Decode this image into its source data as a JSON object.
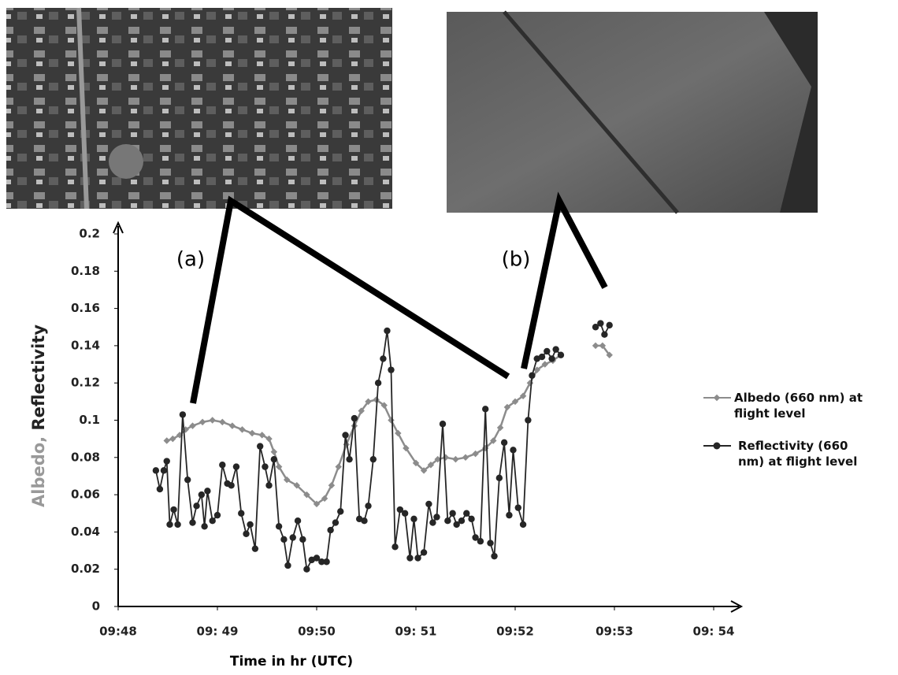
{
  "chart_data": {
    "type": "line",
    "ylabel": [
      "Albedo,",
      "Reflectivity"
    ],
    "xlabel": "Time in hr (UTC)",
    "annotations": [
      "(a)",
      "(b)"
    ],
    "xlim": [
      0,
      6.2
    ],
    "xticks": [
      {
        "value": 0,
        "label": "09:48"
      },
      {
        "value": 1,
        "label": "09: 49"
      },
      {
        "value": 2,
        "label": "09:50"
      },
      {
        "value": 3,
        "label": "09: 51"
      },
      {
        "value": 4,
        "label": "09:52"
      },
      {
        "value": 5,
        "label": "09:53"
      },
      {
        "value": 6,
        "label": "09: 54"
      }
    ],
    "ylim": [
      0,
      0.2
    ],
    "yticks": [
      0,
      0.02,
      0.04,
      0.06,
      0.08,
      0.1,
      0.12,
      0.14,
      0.16,
      0.18,
      0.2
    ],
    "series": [
      {
        "name": "Albedo (660 nm) at flight level",
        "color": "#8c8c8c",
        "x": [
          0.49,
          0.55,
          0.62,
          0.68,
          0.75,
          0.85,
          0.95,
          1.05,
          1.15,
          1.25,
          1.35,
          1.45,
          1.52,
          1.57,
          1.62,
          1.7,
          1.8,
          1.9,
          2.0,
          2.08,
          2.15,
          2.22,
          2.3,
          2.38,
          2.45,
          2.52,
          2.6,
          2.68,
          2.75,
          2.82,
          2.9,
          3.0,
          3.08,
          3.15,
          3.22,
          3.3,
          3.4,
          3.5,
          3.6,
          3.7,
          3.78,
          3.85,
          3.92,
          4.0,
          4.08,
          4.15,
          4.22,
          4.3,
          4.38,
          4.46,
          4.6,
          4.81,
          4.88,
          4.95
        ],
        "values": [
          0.089,
          0.09,
          0.092,
          0.095,
          0.097,
          0.099,
          0.1,
          0.099,
          0.097,
          0.095,
          0.093,
          0.092,
          0.09,
          0.083,
          0.075,
          0.068,
          0.065,
          0.06,
          0.055,
          0.058,
          0.065,
          0.075,
          0.087,
          0.097,
          0.105,
          0.11,
          0.111,
          0.108,
          0.1,
          0.093,
          0.085,
          0.077,
          0.073,
          0.076,
          0.079,
          0.08,
          0.079,
          0.08,
          0.082,
          0.085,
          0.089,
          0.096,
          0.107,
          0.11,
          0.113,
          0.12,
          0.127,
          0.13,
          0.132,
          0.135,
          null,
          0.14,
          0.14,
          0.135
        ]
      },
      {
        "name": "Reflectivity (660 nm) at flight level",
        "color": "#262626",
        "x": [
          0.38,
          0.42,
          0.46,
          0.49,
          0.52,
          0.56,
          0.6,
          0.65,
          0.7,
          0.75,
          0.79,
          0.84,
          0.87,
          0.9,
          0.95,
          1.0,
          1.05,
          1.1,
          1.14,
          1.19,
          1.24,
          1.29,
          1.33,
          1.38,
          1.43,
          1.48,
          1.52,
          1.57,
          1.62,
          1.67,
          1.71,
          1.76,
          1.81,
          1.86,
          1.9,
          1.95,
          2.0,
          2.05,
          2.1,
          2.14,
          2.19,
          2.24,
          2.29,
          2.33,
          2.38,
          2.43,
          2.48,
          2.52,
          2.57,
          2.62,
          2.67,
          2.71,
          2.75,
          2.79,
          2.84,
          2.89,
          2.94,
          2.98,
          3.02,
          3.08,
          3.13,
          3.17,
          3.21,
          3.27,
          3.32,
          3.37,
          3.41,
          3.46,
          3.51,
          3.56,
          3.6,
          3.65,
          3.7,
          3.75,
          3.79,
          3.84,
          3.89,
          3.94,
          3.98,
          4.03,
          4.08,
          4.13,
          4.17,
          4.22,
          4.27,
          4.32,
          4.37,
          4.41,
          4.46,
          4.6,
          4.81,
          4.86,
          4.9,
          4.95
        ],
        "values": [
          0.073,
          0.063,
          0.073,
          0.078,
          0.044,
          0.052,
          0.044,
          0.103,
          0.068,
          0.045,
          0.054,
          0.06,
          0.043,
          0.062,
          0.046,
          0.049,
          0.076,
          0.066,
          0.065,
          0.075,
          0.05,
          0.039,
          0.044,
          0.031,
          0.086,
          0.075,
          0.065,
          0.079,
          0.043,
          0.036,
          0.022,
          0.037,
          0.046,
          0.036,
          0.02,
          0.025,
          0.026,
          0.024,
          0.024,
          0.041,
          0.045,
          0.051,
          0.092,
          0.079,
          0.101,
          0.047,
          0.046,
          0.054,
          0.079,
          0.12,
          0.133,
          0.148,
          0.127,
          0.032,
          0.052,
          0.05,
          0.026,
          0.047,
          0.026,
          0.029,
          0.055,
          0.045,
          0.048,
          0.098,
          0.046,
          0.05,
          0.044,
          0.046,
          0.05,
          0.047,
          0.037,
          0.035,
          0.106,
          0.034,
          0.027,
          0.069,
          0.088,
          0.049,
          0.084,
          0.053,
          0.044,
          0.1,
          0.124,
          0.133,
          0.134,
          0.137,
          0.133,
          0.138,
          0.135,
          null,
          0.15,
          0.152,
          0.146,
          0.151
        ]
      }
    ]
  }
}
